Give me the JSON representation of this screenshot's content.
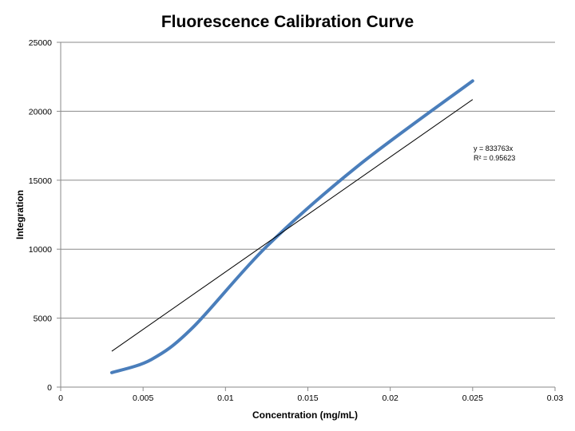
{
  "chart_data": {
    "type": "line",
    "title": "Fluorescence Calibration Curve",
    "xlabel": "Concentration (mg/mL)",
    "ylabel": "Integration",
    "xlim": [
      0,
      0.03
    ],
    "ylim": [
      0,
      25000
    ],
    "x_ticks": [
      0,
      0.005,
      0.01,
      0.015,
      0.02,
      0.025,
      0.03
    ],
    "x_tick_labels": [
      "0",
      "0.005",
      "0.01",
      "0.015",
      "0.02",
      "0.025",
      "0.03"
    ],
    "y_ticks": [
      0,
      5000,
      10000,
      15000,
      20000,
      25000
    ],
    "y_tick_labels": [
      "0",
      "5000",
      "10000",
      "15000",
      "20000",
      "25000"
    ],
    "grid": true,
    "series": [
      {
        "color": "#4a7ebb",
        "smooth": true,
        "x": [
          0.0031,
          0.0055,
          0.008,
          0.0125,
          0.018,
          0.025
        ],
        "y": [
          1050,
          2000,
          4300,
          10200,
          16000,
          22200
        ]
      }
    ],
    "trendline": {
      "color": "#000000",
      "x": [
        0.0031,
        0.025
      ],
      "y": [
        2600,
        20850
      ],
      "equation": "y = 833763x",
      "r_squared": "R² = 0.95623"
    }
  }
}
